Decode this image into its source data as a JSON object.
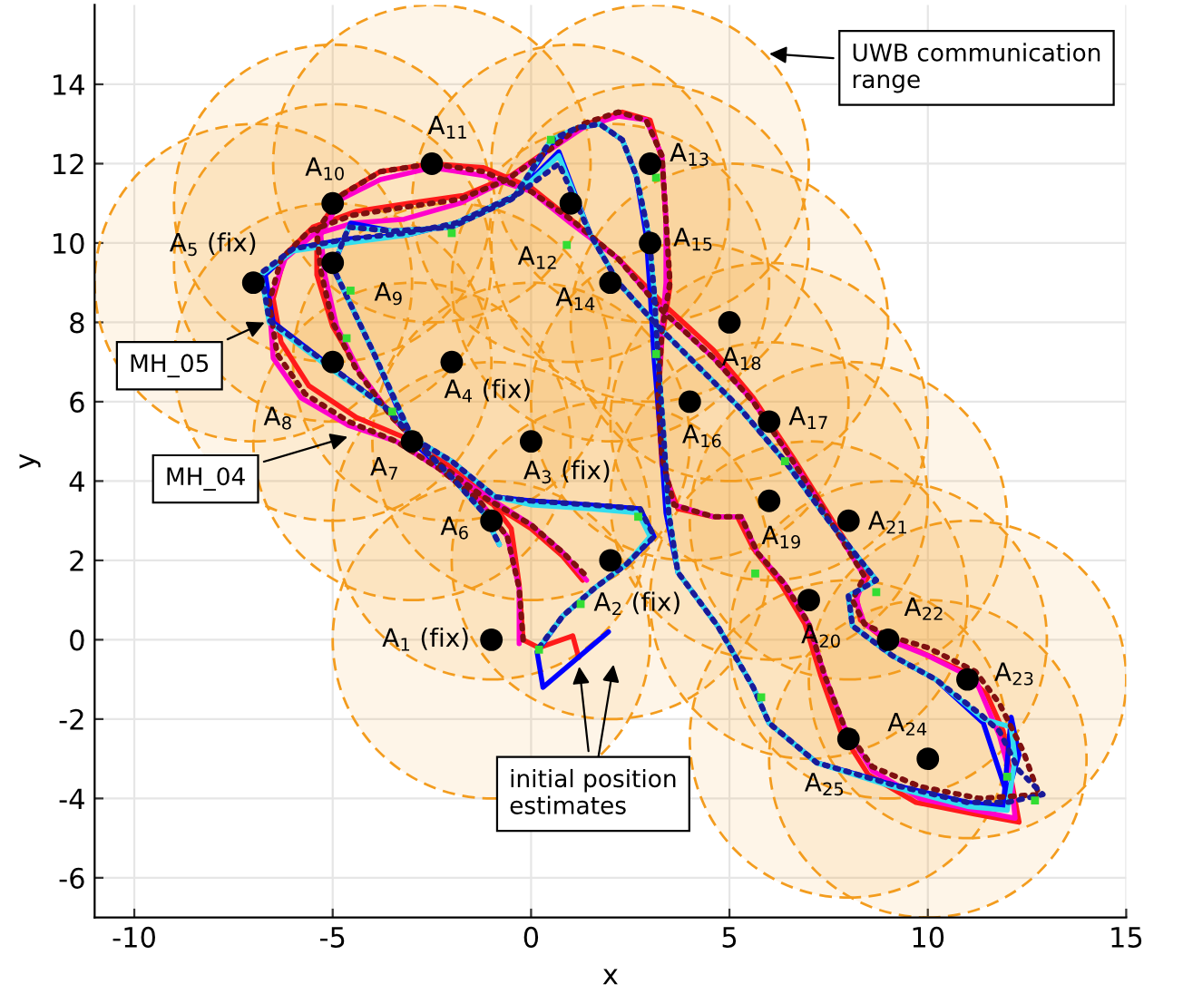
{
  "chart_data": {
    "type": "line",
    "xlabel": "x",
    "ylabel": "y",
    "xlim": [
      -11,
      15
    ],
    "ylim": [
      -7,
      16
    ],
    "xticks": [
      -10,
      -5,
      0,
      5,
      10,
      15
    ],
    "yticks": [
      -6,
      -4,
      -2,
      0,
      2,
      4,
      6,
      8,
      10,
      12,
      14
    ],
    "grid": true,
    "legend": false,
    "series": [
      {
        "type": "bubble",
        "color": "#f39c1e",
        "x": [
          -1,
          2,
          0,
          -2,
          -7,
          -1,
          -3,
          -5,
          -5,
          -5,
          -2.5,
          1,
          3,
          2,
          3,
          4,
          6,
          5,
          6,
          7,
          8,
          9,
          11,
          10,
          8
        ],
        "values": [
          0,
          2,
          5,
          7,
          9,
          3,
          5,
          7,
          9.5,
          11,
          12,
          11,
          12,
          9,
          10,
          6,
          5.5,
          8,
          3.5,
          1,
          3,
          0,
          -1,
          -3,
          -2.5
        ],
        "sizes": [
          1,
          1,
          1,
          1,
          1,
          1,
          1,
          1,
          1,
          1,
          1,
          1,
          1,
          1,
          1,
          1,
          1,
          1,
          1,
          1,
          1,
          1,
          1,
          1,
          1
        ]
      },
      {
        "line_style": "dotted",
        "color": "#7f1010",
        "x": [
          -0.2,
          -0.3,
          -0.6,
          -1.3,
          -2.3,
          -3.4,
          -4.6,
          -5.7,
          -6.4,
          -6.6,
          -6.3,
          -5.6,
          -4.5,
          -3.2,
          -1.8,
          -0.6,
          0.4,
          1.3,
          2.2,
          2.9,
          3.3,
          3.4,
          3.5,
          3.3,
          3.2,
          3.3,
          3.6,
          4.6,
          5.3,
          5.7,
          6.4,
          7.0,
          7.4,
          7.9,
          8.6,
          9.8,
          11.3,
          12.8,
          12.4,
          11.8,
          11.2,
          10.0,
          9.0,
          8.4,
          8.1,
          8.4,
          7.6,
          6.6,
          5.6,
          4.6,
          3.3,
          2.2,
          1.0,
          0.0,
          -1.2,
          -2.5,
          -3.8,
          -4.8,
          -5.4,
          -5.3,
          -5.0,
          -4.4,
          -3.5,
          -2.4,
          -1.2,
          0.0,
          0.8,
          1.4
        ],
        "values": [
          0.0,
          1.3,
          2.6,
          3.5,
          4.3,
          5.0,
          5.5,
          6.2,
          7.2,
          8.5,
          9.6,
          10.3,
          10.7,
          10.9,
          11.1,
          11.6,
          12.3,
          13.0,
          13.3,
          13.1,
          12.2,
          10.6,
          9.0,
          7.8,
          6.2,
          4.6,
          3.4,
          3.1,
          3.1,
          2.2,
          1.4,
          0.4,
          -0.9,
          -2.2,
          -3.2,
          -3.7,
          -4.0,
          -3.9,
          -2.8,
          -1.6,
          -0.8,
          -0.2,
          0.1,
          0.4,
          1.0,
          1.6,
          2.9,
          4.5,
          6.0,
          7.1,
          8.3,
          9.6,
          10.6,
          11.3,
          11.8,
          12.0,
          11.8,
          11.2,
          10.3,
          9.3,
          8.0,
          6.8,
          5.6,
          4.5,
          3.6,
          2.9,
          2.2,
          1.6
        ]
      },
      {
        "line_style": "solid",
        "color": "#ff1a1a",
        "x": [
          1.2,
          1.05,
          0.2,
          -0.2,
          -0.3,
          -0.5,
          -1.1,
          -2.1,
          -3.2,
          -4.4,
          -5.6,
          -6.3,
          -6.5,
          -6.2,
          -5.5,
          -4.4,
          -3.1,
          -1.7,
          -0.5,
          0.5,
          1.4,
          2.3,
          3.0,
          3.3,
          3.4,
          3.5,
          3.3,
          3.2,
          3.3,
          3.7,
          4.6,
          5.2,
          5.6,
          6.3,
          6.9,
          7.3,
          7.8,
          8.5,
          9.7,
          11.2,
          12.3,
          12.1,
          11.9,
          11.5,
          10.9,
          9.8,
          8.8,
          8.3,
          8.2,
          8.5,
          7.6,
          6.6,
          5.6,
          4.6,
          3.4,
          2.2,
          1.0,
          0.0,
          -1.2,
          -2.5,
          -3.8,
          -4.8,
          -5.4,
          -5.4,
          -5.0,
          -4.3,
          -3.4,
          -2.3,
          -1.1,
          0.0,
          0.8,
          1.3
        ],
        "values": [
          -0.45,
          0.1,
          -0.2,
          0.0,
          1.4,
          2.8,
          3.6,
          4.4,
          5.1,
          5.6,
          6.4,
          7.5,
          8.6,
          9.7,
          10.4,
          10.8,
          11.0,
          11.2,
          11.7,
          12.4,
          13.0,
          13.3,
          13.1,
          12.1,
          10.5,
          8.9,
          7.6,
          6.0,
          4.4,
          3.3,
          3.1,
          3.1,
          2.3,
          1.4,
          0.4,
          -0.9,
          -2.3,
          -3.4,
          -4.1,
          -4.4,
          -4.6,
          -3.5,
          -2.3,
          -1.4,
          -0.8,
          -0.3,
          0.1,
          0.5,
          1.1,
          1.6,
          3.0,
          4.6,
          6.1,
          7.3,
          8.4,
          9.6,
          10.6,
          11.4,
          11.9,
          12.0,
          11.8,
          11.2,
          10.3,
          9.2,
          7.9,
          6.7,
          5.5,
          4.4,
          3.5,
          2.8,
          2.1,
          1.5
        ]
      },
      {
        "line_style": "solid",
        "color": "#ff00cc",
        "x": [
          -0.3,
          -0.3,
          -0.6,
          -1.3,
          -2.3,
          -3.4,
          -4.6,
          -5.8,
          -6.5,
          -6.6,
          -6.2,
          -5.5,
          -4.5,
          -3.2,
          -1.8,
          -0.6,
          0.4,
          1.3,
          2.2,
          2.9,
          3.3,
          3.4,
          3.4,
          3.3,
          3.2,
          3.3,
          3.6,
          4.6,
          5.3,
          5.7,
          6.4,
          7.0,
          7.4,
          7.9,
          8.6,
          9.8,
          11.2,
          12.2,
          12.1,
          11.8,
          11.2,
          10.0,
          9.0,
          8.4,
          8.2,
          8.4,
          7.6,
          6.6,
          5.6,
          4.6,
          3.3,
          2.2,
          1.0,
          0.0,
          -1.2,
          -2.5,
          -3.8,
          -4.8,
          -5.3,
          -5.2,
          -4.9,
          -4.3,
          -3.4,
          -2.3,
          -1.1,
          0.0,
          0.8,
          1.4
        ],
        "values": [
          -0.1,
          1.3,
          2.6,
          3.5,
          4.3,
          5.0,
          5.4,
          6.1,
          7.1,
          8.5,
          9.6,
          10.2,
          10.5,
          10.6,
          11.0,
          11.6,
          12.3,
          12.9,
          13.2,
          13.1,
          12.2,
          10.6,
          9.0,
          7.8,
          6.2,
          4.6,
          3.4,
          3.1,
          3.1,
          2.2,
          1.4,
          0.4,
          -0.9,
          -2.2,
          -3.3,
          -4.0,
          -4.3,
          -4.5,
          -3.5,
          -2.4,
          -1.0,
          -0.4,
          0.0,
          0.4,
          1.0,
          1.6,
          2.9,
          4.5,
          6.0,
          7.1,
          8.3,
          9.6,
          10.5,
          11.3,
          11.7,
          11.9,
          11.6,
          11.1,
          10.2,
          9.2,
          7.9,
          6.7,
          5.5,
          4.4,
          3.6,
          2.9,
          2.2,
          1.5
        ]
      },
      {
        "line_style": "dotted",
        "color": "#1a1a99",
        "x": [
          0.2,
          0.8,
          1.6,
          2.4,
          3.1,
          2.75,
          1.5,
          0.0,
          -0.9,
          -2.0,
          -3.0,
          -3.6,
          -5.0,
          -6.6,
          -6.8,
          -6.0,
          -4.65,
          -3.15,
          -1.9,
          -0.4,
          0.5,
          1.15,
          1.73,
          2.3,
          2.65,
          2.97,
          3.1,
          3.2,
          3.33,
          3.47,
          3.7,
          4.7,
          5.6,
          6.0,
          7.2,
          9.1,
          11.0,
          12.0,
          12.9,
          12.3,
          11.8,
          11.35,
          10.2,
          9.1,
          8.1,
          8.0,
          8.7,
          7.5,
          6.4,
          5.25,
          4.1,
          3.15,
          2.2,
          1.5,
          0.7,
          -0.5,
          -2.0,
          -3.5,
          -4.6,
          -5.0,
          -4.0,
          -3.0,
          -2.0,
          -1.2,
          -0.8
        ],
        "values": [
          -0.2,
          0.6,
          1.3,
          1.9,
          2.6,
          3.3,
          3.4,
          3.5,
          3.6,
          4.5,
          5.1,
          5.8,
          6.85,
          8.05,
          9.25,
          9.85,
          10.1,
          10.25,
          10.5,
          11.2,
          12.6,
          12.9,
          13.0,
          12.6,
          11.7,
          10.2,
          8.8,
          7.1,
          5.3,
          3.2,
          1.7,
          0.35,
          -1.2,
          -2.1,
          -3.1,
          -3.65,
          -4.1,
          -4.1,
          -3.9,
          -3.3,
          -2.3,
          -1.9,
          -1.0,
          -0.4,
          0.35,
          1.1,
          1.5,
          3.0,
          4.5,
          5.85,
          7.0,
          7.95,
          9.0,
          10.2,
          12.0,
          11.1,
          10.4,
          10.3,
          10.4,
          9.4,
          7.3,
          5.1,
          4.1,
          3.2,
          2.4
        ]
      },
      {
        "line_style": "solid",
        "color": "#0000ff",
        "x": [
          1.95,
          0.3,
          0.15,
          0.8,
          1.6,
          2.4,
          3.1,
          2.75,
          1.5,
          0.0,
          -0.9,
          -2.0,
          -3.0,
          -3.6,
          -5.0,
          -6.5,
          -6.7,
          -6.0,
          -4.65,
          -3.15,
          -1.9,
          -0.4,
          0.5,
          1.15,
          1.73,
          2.3,
          2.65,
          2.9,
          3.0,
          3.1,
          3.25,
          3.4,
          3.7,
          4.7,
          5.6,
          6.0,
          7.2,
          9.1,
          11.0,
          11.9,
          12.1,
          12.3,
          12.0,
          11.4,
          10.2,
          9.1,
          8.1,
          8.0,
          8.7,
          7.5,
          6.4,
          5.25,
          4.1,
          3.15,
          2.2,
          1.5,
          0.7,
          -0.5,
          -2.0,
          -3.5,
          -4.55,
          -5.0,
          -4.0,
          -3.0,
          -2.0,
          -1.2,
          -0.8
        ],
        "values": [
          0.2,
          -1.2,
          -0.3,
          0.6,
          1.3,
          1.9,
          2.6,
          3.3,
          3.4,
          3.5,
          3.6,
          4.5,
          5.1,
          5.8,
          6.85,
          8.0,
          9.2,
          9.85,
          10.1,
          10.2,
          10.5,
          11.2,
          12.5,
          12.9,
          13.0,
          12.6,
          11.7,
          10.2,
          8.8,
          7.1,
          5.3,
          3.2,
          1.7,
          0.35,
          -1.2,
          -2.1,
          -3.1,
          -3.65,
          -4.1,
          -4.2,
          -1.95,
          -2.9,
          -3.9,
          -2.1,
          -1.0,
          -0.4,
          0.35,
          1.1,
          1.5,
          3.0,
          4.5,
          5.85,
          7.0,
          7.95,
          9.0,
          10.2,
          12.3,
          11.1,
          10.4,
          10.3,
          10.5,
          9.4,
          7.3,
          5.0,
          4.1,
          3.2,
          2.4
        ]
      },
      {
        "line_style": "solid",
        "color": "#33ddee",
        "x": [
          0.2,
          0.8,
          1.6,
          2.4,
          3.0,
          2.7,
          1.5,
          0.0,
          -0.9,
          -2.0,
          -3.0,
          -3.6,
          -5.0,
          -6.6,
          -6.8,
          -6.0,
          -4.65,
          -3.15,
          -1.9,
          -0.4,
          0.5,
          1.15,
          1.73,
          2.3,
          2.65,
          2.97,
          3.1,
          3.2,
          3.33,
          3.47,
          3.7,
          4.7,
          5.6,
          6.0,
          7.2,
          9.1,
          11.0,
          12.0,
          12.2,
          12.1,
          11.4,
          10.2,
          9.1,
          8.1,
          8.0,
          8.7,
          7.5,
          6.4,
          5.25,
          4.1,
          3.15,
          2.2,
          1.5,
          0.7,
          -0.5,
          -2.0,
          -3.5,
          -4.6,
          -5.0,
          -4.0,
          -3.0,
          -2.0,
          -1.2,
          -0.8
        ],
        "values": [
          -0.2,
          0.6,
          1.3,
          1.9,
          2.6,
          3.2,
          3.3,
          3.4,
          3.6,
          4.5,
          5.1,
          5.8,
          6.8,
          8.0,
          9.2,
          9.8,
          10.0,
          10.2,
          10.5,
          11.2,
          12.6,
          12.9,
          13.0,
          12.6,
          11.7,
          10.2,
          8.8,
          7.1,
          5.3,
          3.2,
          1.7,
          0.35,
          -1.2,
          -2.1,
          -3.1,
          -3.7,
          -4.2,
          -4.3,
          -3.0,
          -2.2,
          -2.0,
          -1.0,
          -0.4,
          0.35,
          1.1,
          1.5,
          3.0,
          4.5,
          5.85,
          7.0,
          7.95,
          9.0,
          10.2,
          12.2,
          11.1,
          10.4,
          10.3,
          10.4,
          9.4,
          7.3,
          5.1,
          4.1,
          3.2,
          2.4
        ]
      },
      {
        "type": "scatter",
        "marker": "square",
        "color": "#33dd33",
        "x": [
          1.25,
          2.7,
          5.65,
          5.8,
          8.7,
          12.0,
          12.7,
          3.15,
          3.15,
          0.9,
          0.5,
          -2.0,
          -4.55,
          -4.65,
          -3.5,
          0.2,
          6.4
        ],
        "values": [
          0.9,
          3.1,
          1.67,
          -1.45,
          1.2,
          -3.45,
          -4.05,
          7.2,
          11.65,
          9.95,
          12.6,
          10.25,
          8.8,
          7.6,
          5.75,
          -0.25,
          4.5
        ]
      },
      {
        "type": "scatter",
        "marker": "circle",
        "color": "#000000",
        "x": [
          -1,
          2,
          0,
          -2,
          -7,
          -1,
          -3,
          -5,
          -5,
          -5,
          -2.5,
          1,
          3,
          2,
          3,
          4,
          6,
          5,
          6,
          7,
          8,
          9,
          11,
          10,
          8
        ],
        "values": [
          0,
          2,
          5,
          7,
          9,
          3,
          5,
          7,
          9.5,
          11,
          12,
          11,
          12,
          9,
          10,
          6,
          5.5,
          8,
          3.5,
          1,
          3,
          0,
          -1,
          -3,
          -2.5
        ]
      }
    ],
    "annotations": [
      {
        "text": "A$_{1}$ (fix)",
        "x": -1,
        "y": 0
      },
      {
        "text": "A$_{2}$ (fix)",
        "x": 2,
        "y": 2
      },
      {
        "text": "A$_{3}$ (fix)",
        "x": 0,
        "y": 5
      },
      {
        "text": "A$_{4}$ (fix)",
        "x": -2,
        "y": 7
      },
      {
        "text": "A$_{5}$ (fix)",
        "x": -7,
        "y": 9
      },
      {
        "text": "A$_{6}$",
        "x": -1,
        "y": 3
      },
      {
        "text": "A$_{7}$",
        "x": -3,
        "y": 5
      },
      {
        "text": "A$_{8}$",
        "x": -5,
        "y": 7
      },
      {
        "text": "A$_{9}$",
        "x": -5,
        "y": 9.5
      },
      {
        "text": "A$_{10}$",
        "x": -5,
        "y": 11
      },
      {
        "text": "A$_{11}$",
        "x": -2.5,
        "y": 12
      },
      {
        "text": "A$_{12}$",
        "x": 1,
        "y": 11
      },
      {
        "text": "A$_{13}$",
        "x": 3,
        "y": 12
      },
      {
        "text": "A$_{14}$",
        "x": 2,
        "y": 9
      },
      {
        "text": "A$_{15}$",
        "x": 3,
        "y": 10
      },
      {
        "text": "A$_{16}$",
        "x": 4,
        "y": 6
      },
      {
        "text": "A$_{17}$",
        "x": 6,
        "y": 5.5
      },
      {
        "text": "A$_{18}$",
        "x": 5,
        "y": 8
      },
      {
        "text": "A$_{19}$",
        "x": 6,
        "y": 3.5
      },
      {
        "text": "A$_{20}$",
        "x": 7,
        "y": 1
      },
      {
        "text": "A$_{21}$",
        "x": 8,
        "y": 3
      },
      {
        "text": "A$_{22}$",
        "x": 9,
        "y": 0
      },
      {
        "text": "A$_{23}$",
        "x": 11,
        "y": -1
      },
      {
        "text": "A$_{24}$",
        "x": 10,
        "y": -3
      },
      {
        "text": "A$_{25}$",
        "x": 8,
        "y": -2.5
      },
      "UWB communication\nrange",
      {
        "text": "MH_05",
        "x": -6.6,
        "y": 8.05
      },
      {
        "text": "MH_04",
        "x": -4.5,
        "y": 5.15
      },
      {
        "text": "initial position\nestimates",
        "x": 1.2,
        "y": -0.55
      }
    ]
  }
}
